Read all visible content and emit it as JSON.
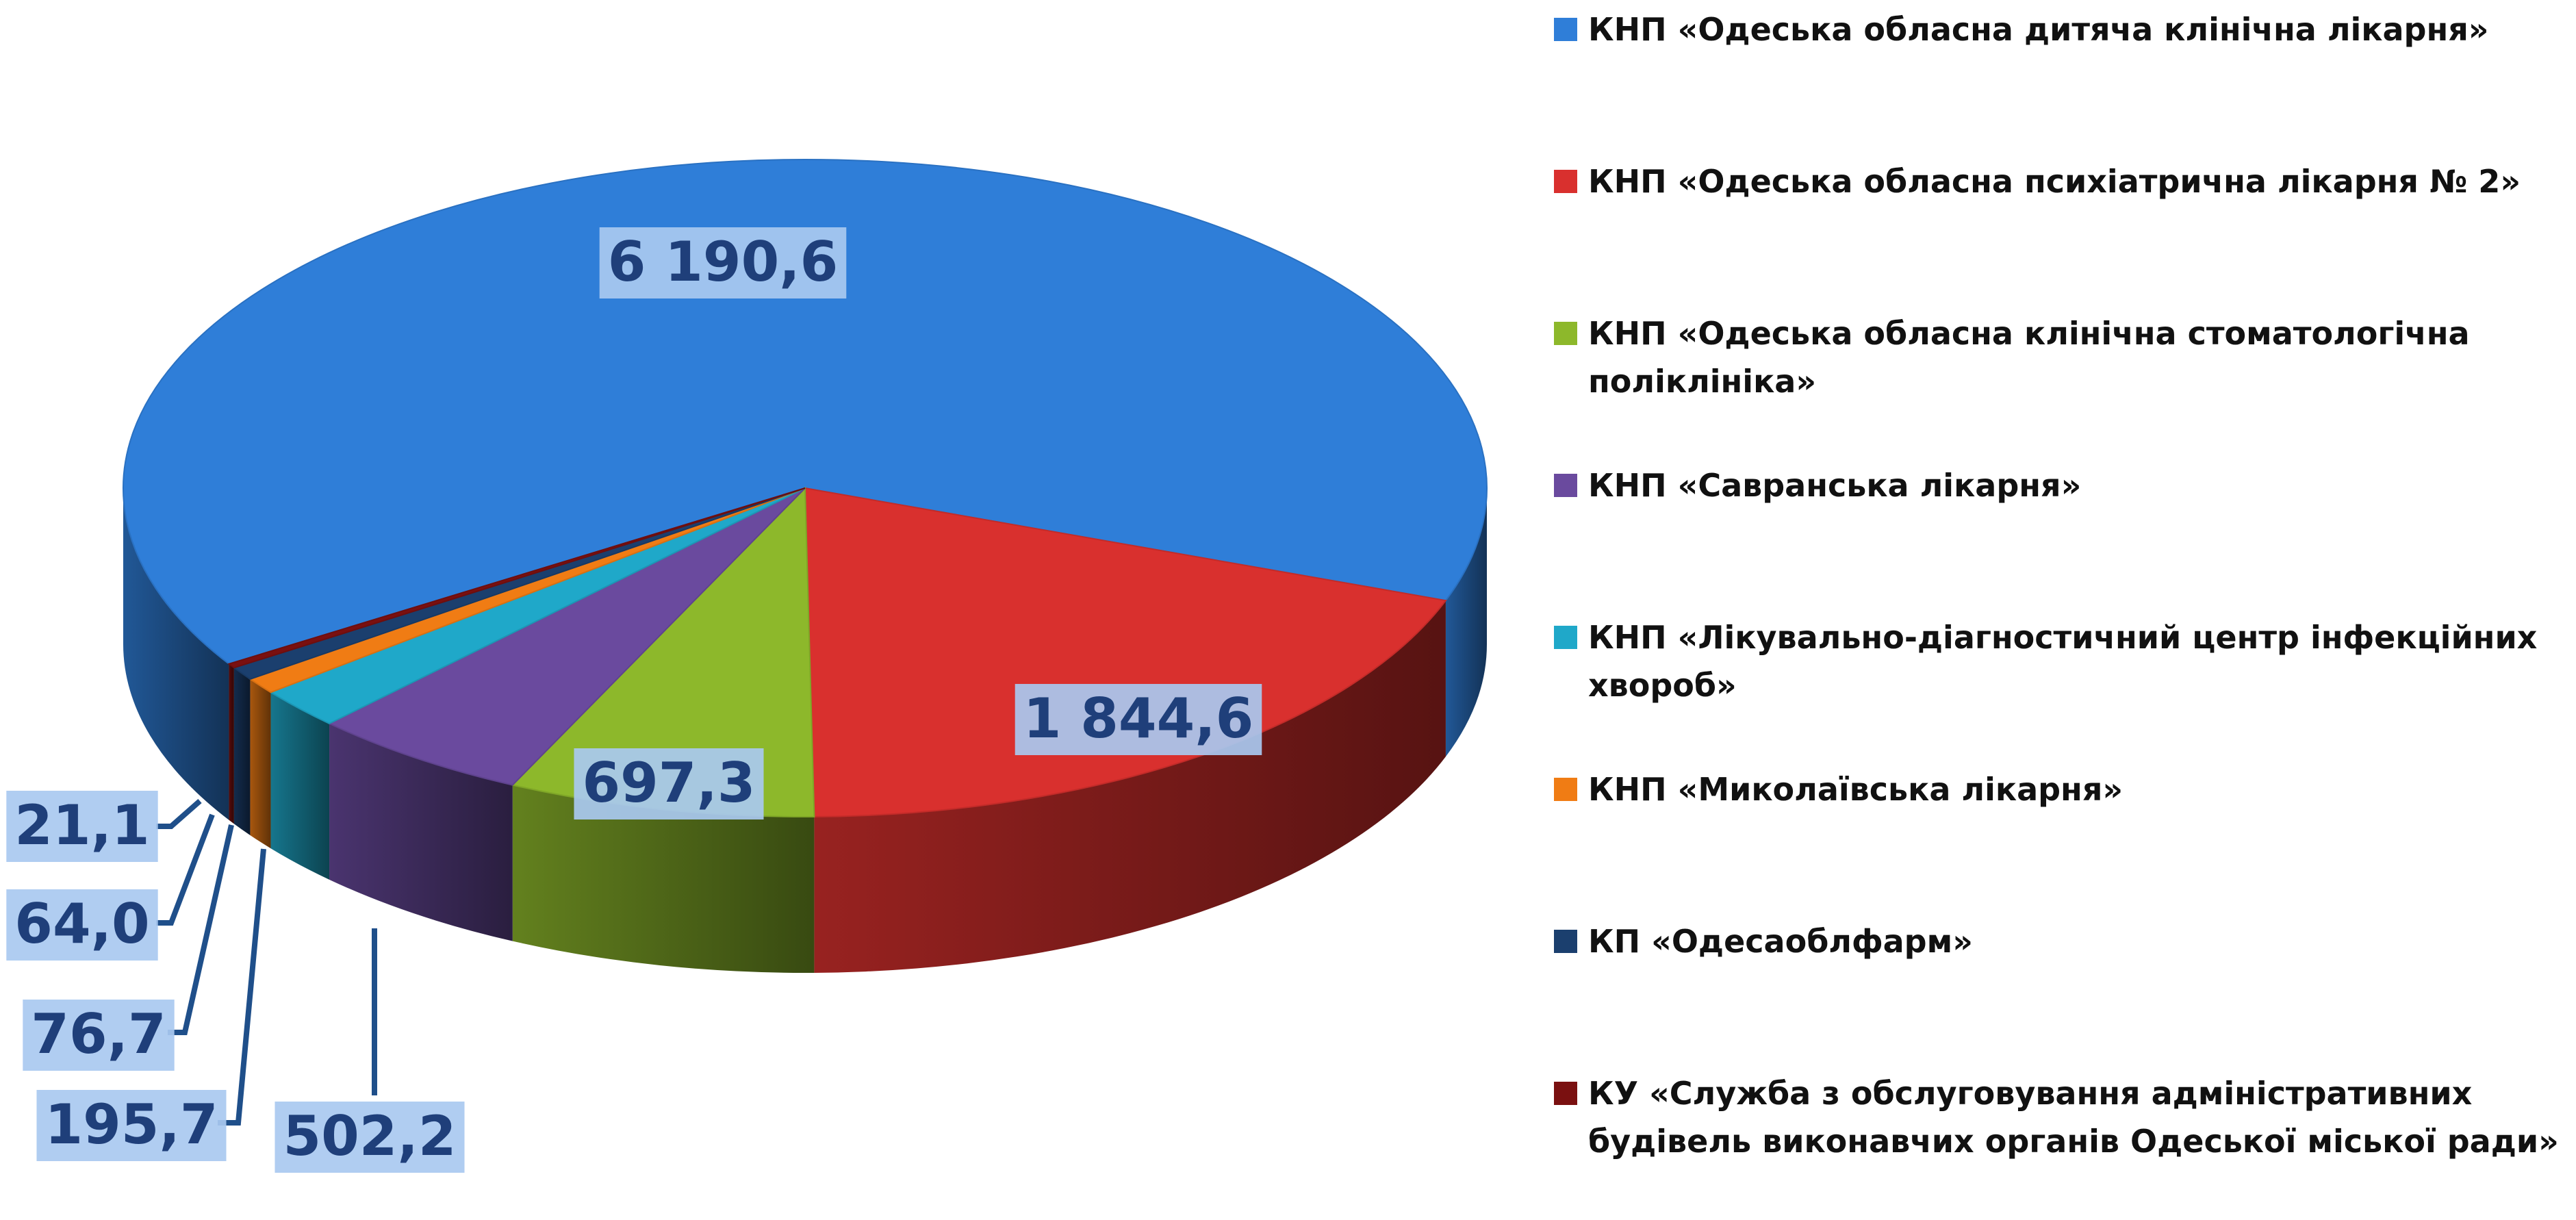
{
  "chart_data": {
    "type": "pie",
    "categories": [
      "КНП «Одеська обласна дитяча клінічна лікарня»",
      "КНП «Одеська обласна психіатрична лікарня № 2»",
      "КНП «Одеська обласна клінічна стоматологічна поліклініка»",
      "КНП «Савранська лікарня»",
      "КНП «Лікувально-діагностичний центр інфекційних хвороб»",
      "КНП «Миколаївська лікарня»",
      "КП «Одесаоблфарм»",
      "КУ «Служба з обслуговування адміністративних будівель виконавчих органів Одеської міської ради»"
    ],
    "values": [
      6190.6,
      1844.6,
      697.3,
      502.2,
      195.7,
      76.7,
      64.0,
      21.1
    ],
    "value_labels": [
      "6 190,6",
      "1 844,6",
      "697,3",
      "502,2",
      "195,7",
      "76,7",
      "64,0",
      "21,1"
    ],
    "colors": [
      "#2f7ed8",
      "#d9302e",
      "#8db82b",
      "#6a4a9e",
      "#1fa8c9",
      "#f07c14",
      "#1b3f6e",
      "#7a1010"
    ],
    "legend": "right"
  }
}
